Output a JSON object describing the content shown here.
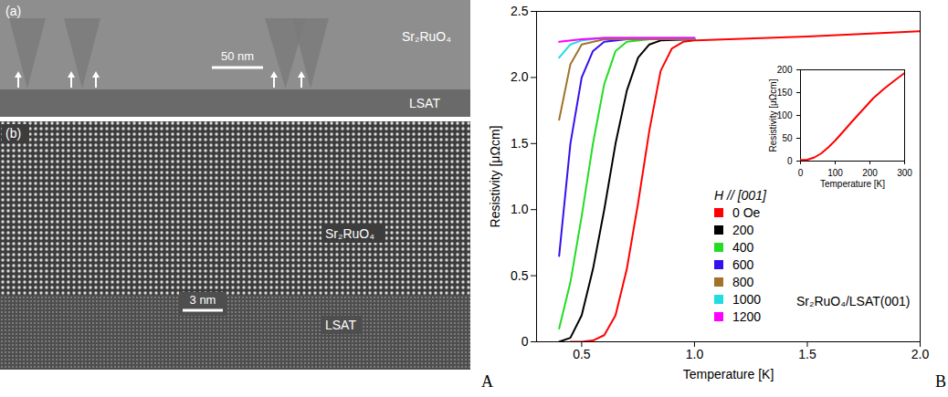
{
  "figure": {
    "panel_labels": [
      "A",
      "B"
    ]
  },
  "images": [
    {
      "label": "(a)",
      "layers": [
        "Sr₂RuO₄",
        "LSAT"
      ],
      "scale_bar": "50 nm"
    },
    {
      "label": "(b)",
      "layers": [
        "Sr₂RuO₄",
        "LSAT"
      ],
      "scale_bar": "3 nm"
    }
  ],
  "chart_data": [
    {
      "type": "line",
      "xlabel": "Temperature [K]",
      "ylabel": "Resistivity [μΩcm]",
      "xlim": [
        0.3,
        2.0
      ],
      "xticks": [
        0.5,
        {
          "value": 1,
          "label": "1.0"
        },
        1.5,
        {
          "value": 2,
          "label": "2.0"
        }
      ],
      "ylim": [
        0,
        2.5
      ],
      "yticks": [
        0,
        0.5,
        {
          "value": 1,
          "label": "1.0"
        },
        1.5,
        {
          "value": 2,
          "label": "2.0"
        },
        2.5
      ],
      "legend": "center",
      "legend_title": "H // [001]",
      "annotation": "Sr₂RuO₄/LSAT(001)",
      "series": [
        {
          "name": "0 Oe",
          "color": "#ff0000",
          "x": [
            0.45,
            0.5,
            0.55,
            0.6,
            0.65,
            0.7,
            0.75,
            0.8,
            0.85,
            0.9,
            0.95,
            1.0,
            1.5,
            2.0
          ],
          "values": [
            0,
            0,
            0.01,
            0.05,
            0.2,
            0.55,
            1.05,
            1.6,
            2.05,
            2.22,
            2.27,
            2.28,
            2.31,
            2.35
          ]
        },
        {
          "name": "200",
          "color": "#000000",
          "x": [
            0.4,
            0.45,
            0.5,
            0.55,
            0.6,
            0.65,
            0.7,
            0.75,
            0.8,
            0.85,
            1.0
          ],
          "values": [
            0,
            0.03,
            0.2,
            0.55,
            1.0,
            1.5,
            1.9,
            2.15,
            2.25,
            2.28,
            2.29
          ]
        },
        {
          "name": "400",
          "color": "#22dd22",
          "x": [
            0.4,
            0.45,
            0.5,
            0.55,
            0.6,
            0.65,
            0.7,
            0.8,
            1.0
          ],
          "values": [
            0.1,
            0.45,
            0.95,
            1.5,
            1.95,
            2.2,
            2.27,
            2.29,
            2.29
          ]
        },
        {
          "name": "600",
          "color": "#3311ee",
          "x": [
            0.4,
            0.45,
            0.5,
            0.55,
            0.6,
            0.7,
            1.0
          ],
          "values": [
            0.65,
            1.5,
            2.0,
            2.2,
            2.27,
            2.29,
            2.29
          ]
        },
        {
          "name": "800",
          "color": "#a0722a",
          "x": [
            0.4,
            0.45,
            0.5,
            0.6,
            1.0
          ],
          "values": [
            1.68,
            2.1,
            2.25,
            2.29,
            2.29
          ]
        },
        {
          "name": "1000",
          "color": "#22dddd",
          "x": [
            0.4,
            0.45,
            0.5,
            0.6,
            1.0
          ],
          "values": [
            2.15,
            2.25,
            2.28,
            2.3,
            2.3
          ]
        },
        {
          "name": "1200",
          "color": "#ff00ff",
          "x": [
            0.4,
            0.5,
            0.6,
            1.0
          ],
          "values": [
            2.27,
            2.29,
            2.3,
            2.3
          ]
        }
      ]
    },
    {
      "type": "line",
      "xlabel": "Temperature [K]",
      "ylabel": "Resistivity [μΩcm]",
      "xlim": [
        0,
        300
      ],
      "xticks": [
        0,
        100,
        200,
        300
      ],
      "ylim": [
        0,
        200
      ],
      "yticks": [
        0,
        50,
        100,
        150,
        200
      ],
      "series": [
        {
          "color": "#ff0000",
          "x": [
            0,
            20,
            40,
            60,
            80,
            100,
            120,
            150,
            180,
            210,
            240,
            270,
            300
          ],
          "values": [
            2.3,
            3,
            8,
            17,
            30,
            45,
            62,
            88,
            113,
            138,
            158,
            176,
            193
          ]
        }
      ]
    }
  ]
}
